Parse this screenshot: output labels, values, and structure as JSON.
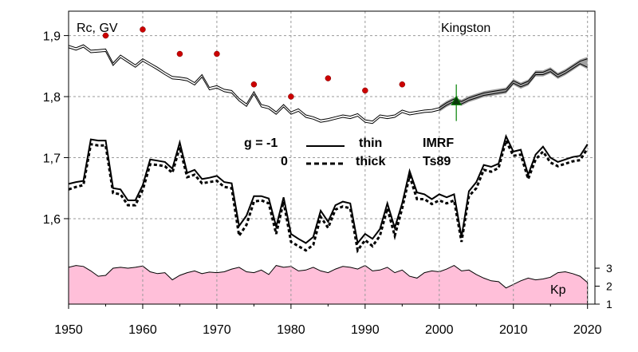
{
  "chart_data": {
    "type": "line",
    "annotations": {
      "ylabel": "Rc, GV",
      "station": "Kingston",
      "kp_label": "Kp"
    },
    "x_ticks": [
      "1950",
      "1960",
      "1970",
      "1980",
      "1990",
      "2000",
      "2010",
      "2020"
    ],
    "y_ticks": [
      "1,6",
      "1,7",
      "1,8",
      "1,9"
    ],
    "kp_ticks": [
      "1",
      "2",
      "3"
    ],
    "xlim": [
      1950,
      2021
    ],
    "ylim": [
      1.46,
      1.94
    ],
    "kp_ylim": [
      1,
      3.3
    ],
    "legend": {
      "g_label": "g  = -1",
      "g2_label": "0",
      "thin_label": "thin",
      "thick_label": "thick",
      "imrf_label": "IMRF",
      "ts89_label": "Ts89"
    },
    "grid": true,
    "colors": {
      "kp_fill": "#ffbfd9",
      "red_points": "#cc0000",
      "green_marker": "#008000",
      "band_gray": "#a0a0a0"
    },
    "upper_thin": {
      "x": [
        1950,
        1951,
        1952,
        1953,
        1954,
        1955,
        1956,
        1957,
        1958,
        1959,
        1960,
        1961,
        1962,
        1963,
        1964,
        1965,
        1966,
        1967,
        1968,
        1969,
        1970,
        1971,
        1972,
        1973,
        1974,
        1975,
        1976,
        1977,
        1978,
        1979,
        1980,
        1981,
        1982,
        1983,
        1984,
        1985,
        1986,
        1987,
        1988,
        1989,
        1990,
        1991,
        1992,
        1993,
        1994,
        1995,
        1996,
        1997,
        1998,
        1999,
        2000,
        2001,
        2002,
        2003,
        2004,
        2005,
        2006,
        2007,
        2008,
        2009,
        2010,
        2011,
        2012,
        2013,
        2014,
        2015,
        2016,
        2017,
        2018,
        2019,
        2020
      ],
      "y": [
        1.884,
        1.88,
        1.885,
        1.876,
        1.877,
        1.878,
        1.855,
        1.868,
        1.86,
        1.852,
        1.862,
        1.855,
        1.848,
        1.84,
        1.833,
        1.832,
        1.83,
        1.823,
        1.836,
        1.815,
        1.818,
        1.812,
        1.81,
        1.797,
        1.788,
        1.808,
        1.787,
        1.784,
        1.775,
        1.787,
        1.775,
        1.78,
        1.77,
        1.767,
        1.762,
        1.764,
        1.767,
        1.77,
        1.768,
        1.772,
        1.762,
        1.76,
        1.77,
        1.768,
        1.77,
        1.778,
        1.774,
        1.776,
        1.778,
        1.779,
        1.782,
        1.79,
        1.796,
        1.792,
        1.798,
        1.802,
        1.806,
        1.808,
        1.81,
        1.812,
        1.826,
        1.82,
        1.825,
        1.84,
        1.84,
        1.845,
        1.836,
        1.842,
        1.85,
        1.858,
        1.862
      ]
    },
    "upper_thick": {
      "y": [
        1.88,
        1.876,
        1.881,
        1.872,
        1.873,
        1.874,
        1.851,
        1.864,
        1.856,
        1.848,
        1.858,
        1.851,
        1.844,
        1.836,
        1.829,
        1.828,
        1.826,
        1.819,
        1.832,
        1.811,
        1.814,
        1.808,
        1.806,
        1.793,
        1.784,
        1.804,
        1.783,
        1.78,
        1.771,
        1.783,
        1.771,
        1.776,
        1.766,
        1.763,
        1.758,
        1.76,
        1.763,
        1.766,
        1.764,
        1.768,
        1.758,
        1.756,
        1.766,
        1.764,
        1.766,
        1.774,
        1.77,
        1.772,
        1.774,
        1.775,
        1.778,
        1.786,
        1.792,
        1.788,
        1.794,
        1.798,
        1.802,
        1.804,
        1.806,
        1.808,
        1.822,
        1.816,
        1.821,
        1.836,
        1.836,
        1.841,
        1.832,
        1.838,
        1.846,
        1.854,
        1.848
      ]
    },
    "red_points": {
      "x": [
        1955,
        1960,
        1965,
        1970,
        1975,
        1980,
        1985,
        1990,
        1995
      ],
      "y": [
        1.9,
        1.91,
        1.87,
        1.87,
        1.82,
        1.8,
        1.83,
        1.81,
        1.82
      ]
    },
    "green_marker": {
      "x": 2002.3,
      "y": 1.793,
      "err": [
        1.76,
        1.82
      ]
    },
    "lower_thin": {
      "x": [
        1950,
        1951,
        1952,
        1953,
        1954,
        1955,
        1956,
        1957,
        1958,
        1959,
        1960,
        1961,
        1962,
        1963,
        1964,
        1965,
        1966,
        1967,
        1968,
        1969,
        1970,
        1971,
        1972,
        1973,
        1974,
        1975,
        1976,
        1977,
        1978,
        1979,
        1980,
        1981,
        1982,
        1983,
        1984,
        1985,
        1986,
        1987,
        1988,
        1989,
        1990,
        1991,
        1992,
        1993,
        1994,
        1995,
        1996,
        1997,
        1998,
        1999,
        2000,
        2001,
        2002,
        2003,
        2004,
        2005,
        2006,
        2007,
        2008,
        2009,
        2010,
        2011,
        2012,
        2013,
        2014,
        2015,
        2016,
        2017,
        2018,
        2019,
        2020
      ],
      "y": [
        1.657,
        1.66,
        1.662,
        1.73,
        1.728,
        1.728,
        1.65,
        1.648,
        1.63,
        1.63,
        1.655,
        1.697,
        1.695,
        1.693,
        1.682,
        1.725,
        1.675,
        1.68,
        1.665,
        1.667,
        1.67,
        1.66,
        1.658,
        1.588,
        1.605,
        1.637,
        1.637,
        1.633,
        1.587,
        1.635,
        1.575,
        1.567,
        1.56,
        1.57,
        1.613,
        1.595,
        1.622,
        1.628,
        1.625,
        1.56,
        1.575,
        1.567,
        1.583,
        1.625,
        1.585,
        1.625,
        1.678,
        1.643,
        1.64,
        1.632,
        1.64,
        1.635,
        1.64,
        1.57,
        1.645,
        1.66,
        1.688,
        1.685,
        1.69,
        1.735,
        1.71,
        1.713,
        1.672,
        1.705,
        1.718,
        1.7,
        1.693,
        1.697,
        1.701,
        1.703,
        1.722
      ]
    },
    "lower_thick": {
      "y": [
        1.648,
        1.652,
        1.655,
        1.722,
        1.72,
        1.72,
        1.642,
        1.64,
        1.622,
        1.622,
        1.647,
        1.689,
        1.688,
        1.686,
        1.675,
        1.717,
        1.668,
        1.672,
        1.658,
        1.66,
        1.662,
        1.652,
        1.65,
        1.572,
        1.59,
        1.628,
        1.63,
        1.625,
        1.575,
        1.628,
        1.562,
        1.555,
        1.548,
        1.557,
        1.603,
        1.585,
        1.615,
        1.62,
        1.617,
        1.548,
        1.565,
        1.555,
        1.572,
        1.617,
        1.572,
        1.617,
        1.67,
        1.632,
        1.632,
        1.624,
        1.63,
        1.625,
        1.63,
        1.562,
        1.637,
        1.65,
        1.68,
        1.677,
        1.683,
        1.728,
        1.703,
        1.705,
        1.665,
        1.697,
        1.71,
        1.692,
        1.686,
        1.69,
        1.694,
        1.696,
        1.715
      ]
    },
    "kp": {
      "x": [
        1950,
        1951,
        1952,
        1953,
        1954,
        1955,
        1956,
        1957,
        1958,
        1959,
        1960,
        1961,
        1962,
        1963,
        1964,
        1965,
        1966,
        1967,
        1968,
        1969,
        1970,
        1971,
        1972,
        1973,
        1974,
        1975,
        1976,
        1977,
        1978,
        1979,
        1980,
        1981,
        1982,
        1983,
        1984,
        1985,
        1986,
        1987,
        1988,
        1989,
        1990,
        1991,
        1992,
        1993,
        1994,
        1995,
        1996,
        1997,
        1998,
        1999,
        2000,
        2001,
        2002,
        2003,
        2004,
        2005,
        2006,
        2007,
        2008,
        2009,
        2010,
        2011,
        2012,
        2013,
        2014,
        2015,
        2016,
        2017,
        2018,
        2019,
        2020
      ],
      "y": [
        3.05,
        3.15,
        3.1,
        2.85,
        2.55,
        2.6,
        3.0,
        3.05,
        3.0,
        3.05,
        3.12,
        2.8,
        2.7,
        2.75,
        2.35,
        2.6,
        2.75,
        2.85,
        2.7,
        2.78,
        2.75,
        2.8,
        2.95,
        3.05,
        2.8,
        2.75,
        2.9,
        2.65,
        3.15,
        3.05,
        3.1,
        2.85,
        2.9,
        3.05,
        2.85,
        2.75,
        2.95,
        3.1,
        3.05,
        2.95,
        3.15,
        2.85,
        2.9,
        3.05,
        2.75,
        2.9,
        2.55,
        2.45,
        2.75,
        2.85,
        2.8,
        2.95,
        3.15,
        2.85,
        2.9,
        2.65,
        2.45,
        2.3,
        2.25,
        1.9,
        2.1,
        2.3,
        2.45,
        2.35,
        2.4,
        2.5,
        2.75,
        2.8,
        2.7,
        2.55,
        2.2
      ]
    }
  }
}
